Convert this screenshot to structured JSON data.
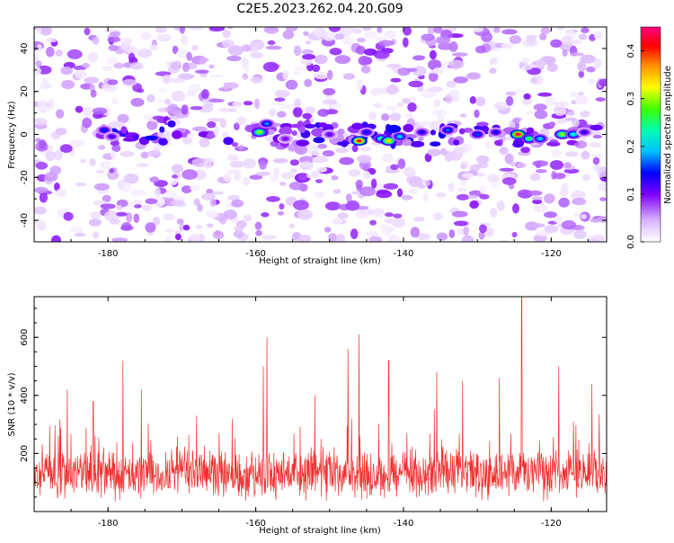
{
  "title": "C2E5.2023.262.04.20.G09",
  "chart_data": [
    {
      "type": "heatmap",
      "xlabel": "Height of straight line (km)",
      "ylabel": "Frequency (Hz)",
      "xlim": [
        -190,
        -112.5
      ],
      "ylim": [
        -50,
        50
      ],
      "xticks": [
        "-180",
        "-160",
        "-140",
        "-120"
      ],
      "yticks": [
        "-40",
        "-20",
        "0",
        "20",
        "40"
      ],
      "colorbar": {
        "label": "Normalized spectral amplitude",
        "range": [
          0,
          0.45
        ],
        "ticks": [
          "0.0",
          "0.1",
          "0.2",
          "0.3",
          "0.4"
        ],
        "colormap": "white-purple-blue-cyan-green-yellow-orange-red-magenta"
      },
      "note_trace_frequency": 0,
      "hotspots": [
        {
          "x": -180.5,
          "y": 2,
          "v": 0.15
        },
        {
          "x": -179.5,
          "y": -1,
          "v": 0.12
        },
        {
          "x": -159.5,
          "y": 1,
          "v": 0.3
        },
        {
          "x": -158.5,
          "y": 5,
          "v": 0.18
        },
        {
          "x": -156.0,
          "y": -2,
          "v": 0.1
        },
        {
          "x": -150.0,
          "y": 0,
          "v": 0.11
        },
        {
          "x": -146.0,
          "y": -3,
          "v": 0.42
        },
        {
          "x": -145.0,
          "y": 1,
          "v": 0.15
        },
        {
          "x": -143.0,
          "y": -2,
          "v": 0.25
        },
        {
          "x": -142.0,
          "y": -3,
          "v": 0.34
        },
        {
          "x": -140.5,
          "y": -1,
          "v": 0.2
        },
        {
          "x": -137.5,
          "y": 1,
          "v": 0.14
        },
        {
          "x": -134.0,
          "y": 2,
          "v": 0.17
        },
        {
          "x": -130.0,
          "y": 0,
          "v": 0.16
        },
        {
          "x": -127.5,
          "y": 1,
          "v": 0.14
        },
        {
          "x": -124.5,
          "y": 0,
          "v": 0.44
        },
        {
          "x": -123.0,
          "y": -2,
          "v": 0.26
        },
        {
          "x": -121.5,
          "y": -2,
          "v": 0.2
        },
        {
          "x": -118.5,
          "y": 0,
          "v": 0.3
        },
        {
          "x": -117.0,
          "y": 0,
          "v": 0.22
        },
        {
          "x": -115.5,
          "y": 1,
          "v": 0.13
        }
      ]
    },
    {
      "type": "line",
      "xlabel": "Height of straight line (km)",
      "ylabel": "SNR (10 * v/v)",
      "xlim": [
        -190,
        -112.5
      ],
      "ylim": [
        0,
        740
      ],
      "xticks": [
        "-180",
        "-160",
        "-140",
        "-120"
      ],
      "yticks": [
        "200",
        "400",
        "600"
      ],
      "color": "#f03030",
      "baseline": 130,
      "spread": 70,
      "peaks": [
        {
          "x": -185.5,
          "y": 420
        },
        {
          "x": -182.0,
          "y": 380
        },
        {
          "x": -178.0,
          "y": 520
        },
        {
          "x": -175.5,
          "y": 420
        },
        {
          "x": -168.0,
          "y": 330
        },
        {
          "x": -158.5,
          "y": 600
        },
        {
          "x": -159.0,
          "y": 500
        },
        {
          "x": -152.0,
          "y": 400
        },
        {
          "x": -147.5,
          "y": 560
        },
        {
          "x": -146.0,
          "y": 610
        },
        {
          "x": -142.0,
          "y": 520
        },
        {
          "x": -135.5,
          "y": 480
        },
        {
          "x": -132.0,
          "y": 450
        },
        {
          "x": -127.0,
          "y": 460
        },
        {
          "x": -124.0,
          "y": 740
        },
        {
          "x": -119.0,
          "y": 500
        },
        {
          "x": -114.5,
          "y": 440
        }
      ]
    }
  ]
}
